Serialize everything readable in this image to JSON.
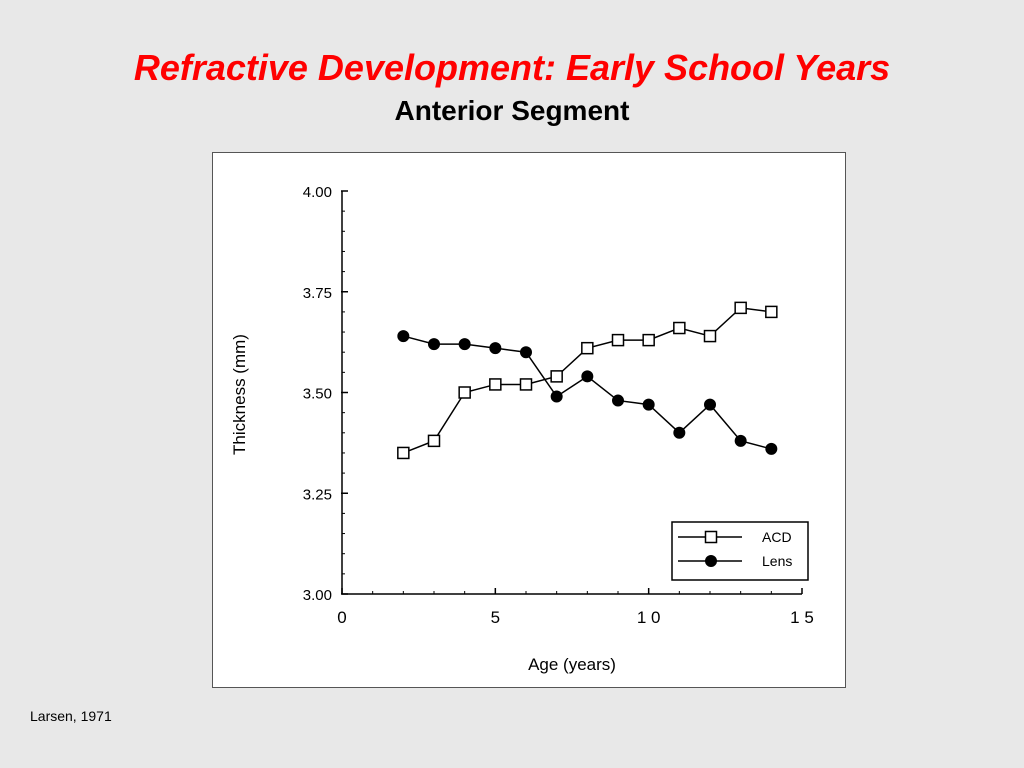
{
  "slide": {
    "title": "Refractive Development: Early School Years",
    "subtitle": "Anterior Segment",
    "citation": "Larsen, 1971"
  },
  "colors": {
    "title": "#ff0000",
    "background": "#e8e8e8"
  },
  "chart_data": {
    "type": "line",
    "title": "",
    "xlabel": "Age  (years)",
    "ylabel": "Thickness  (mm)",
    "xlim": [
      0,
      15
    ],
    "ylim": [
      3.0,
      4.0
    ],
    "xticks": [
      0,
      5,
      10,
      15
    ],
    "xtick_labels": [
      "0",
      "5",
      "1 0",
      "1 5"
    ],
    "yticks": [
      3.0,
      3.25,
      3.5,
      3.75,
      4.0
    ],
    "ytick_labels": [
      "3.00",
      "3.25",
      "3.50",
      "3.75",
      "4.00"
    ],
    "grid": false,
    "legend_position": "bottom-right",
    "series": [
      {
        "name": "ACD",
        "marker": "open-square",
        "x": [
          2,
          3,
          4,
          5,
          6,
          7,
          8,
          9,
          10,
          11,
          12,
          13,
          14
        ],
        "y": [
          3.35,
          3.38,
          3.5,
          3.52,
          3.52,
          3.54,
          3.61,
          3.63,
          3.63,
          3.66,
          3.64,
          3.71,
          3.7
        ]
      },
      {
        "name": "Lens",
        "marker": "filled-circle",
        "x": [
          2,
          3,
          4,
          5,
          6,
          7,
          8,
          9,
          10,
          11,
          12,
          13,
          14
        ],
        "y": [
          3.64,
          3.62,
          3.62,
          3.61,
          3.6,
          3.49,
          3.54,
          3.48,
          3.47,
          3.4,
          3.47,
          3.38,
          3.36
        ]
      }
    ]
  }
}
